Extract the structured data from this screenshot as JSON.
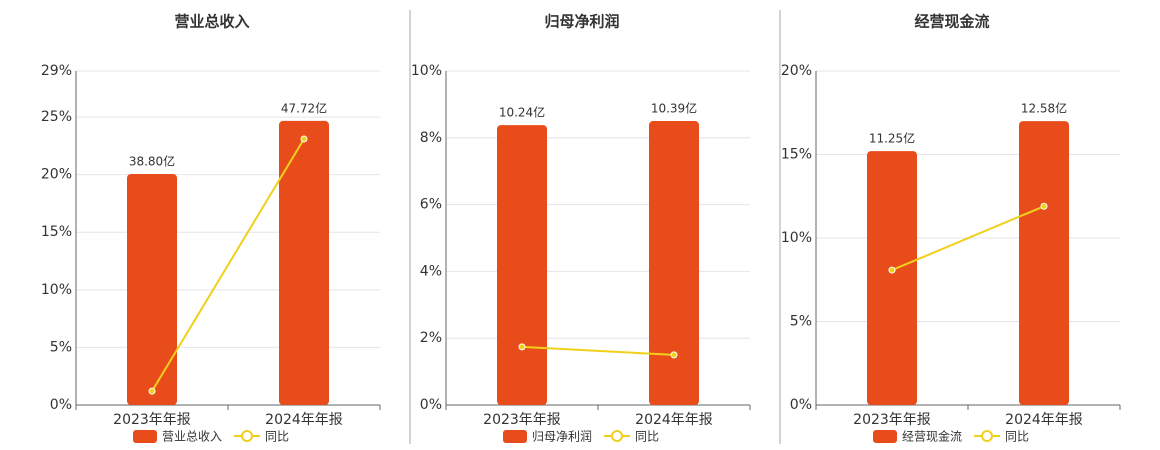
{
  "chart_data": [
    {
      "type": "bar-line",
      "title": "营业总收入",
      "categories": [
        "2023年年报",
        "2024年年报"
      ],
      "series": [
        {
          "name": "营业总收入",
          "color": "#e84c1a",
          "axis": "y2",
          "values": [
            38.8,
            47.72
          ],
          "value_labels": [
            "38.80亿",
            "47.72亿"
          ]
        },
        {
          "name": "同比",
          "color": "#f0d01a",
          "values": [
            1.2,
            23.1
          ]
        }
      ],
      "ylim": [
        0,
        29
      ],
      "yticks": [
        {
          "value": 0,
          "label": "0%"
        },
        {
          "value": 5,
          "label": "5%"
        },
        {
          "value": 10,
          "label": "10%"
        },
        {
          "value": 15,
          "label": "15%"
        },
        {
          "value": 20,
          "label": "20%"
        },
        {
          "value": 25,
          "label": "25%"
        },
        {
          "value": 29,
          "label": "29%"
        }
      ],
      "y2lim": [
        0,
        56.1
      ],
      "grid": true
    },
    {
      "type": "bar-line",
      "title": "归母净利润",
      "categories": [
        "2023年年报",
        "2024年年报"
      ],
      "series": [
        {
          "name": "归母净利润",
          "color": "#e84c1a",
          "axis": "y2",
          "values": [
            10.24,
            10.39
          ],
          "value_labels": [
            "10.24亿",
            "10.39亿"
          ]
        },
        {
          "name": "同比",
          "color": "#f0d01a",
          "values": [
            1.74,
            1.5
          ]
        }
      ],
      "ylim": [
        0,
        10
      ],
      "yticks": [
        {
          "value": 0,
          "label": "0%"
        },
        {
          "value": 2,
          "label": "2%"
        },
        {
          "value": 4,
          "label": "4%"
        },
        {
          "value": 6,
          "label": "6%"
        },
        {
          "value": 8,
          "label": "8%"
        },
        {
          "value": 10,
          "label": "10%"
        }
      ],
      "y2lim": [
        0,
        12.22
      ],
      "grid": true
    },
    {
      "type": "bar-line",
      "title": "经营现金流",
      "categories": [
        "2023年年报",
        "2024年年报"
      ],
      "series": [
        {
          "name": "经营现金流",
          "color": "#e84c1a",
          "axis": "y2",
          "values": [
            11.25,
            12.58
          ],
          "value_labels": [
            "11.25亿",
            "12.58亿"
          ]
        },
        {
          "name": "同比",
          "color": "#f0d01a",
          "values": [
            8.08,
            11.9
          ]
        }
      ],
      "ylim": [
        0,
        20
      ],
      "yticks": [
        {
          "value": 0,
          "label": "0%"
        },
        {
          "value": 5,
          "label": "5%"
        },
        {
          "value": 10,
          "label": "10%"
        },
        {
          "value": 15,
          "label": "15%"
        },
        {
          "value": 20,
          "label": "20%"
        }
      ],
      "y2lim": [
        0,
        14.8
      ],
      "grid": true
    }
  ]
}
